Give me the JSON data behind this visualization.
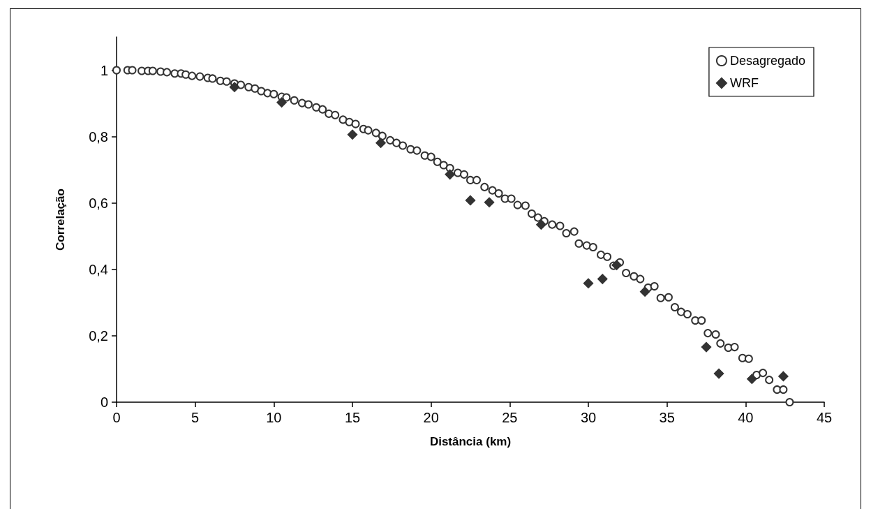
{
  "chart_data": {
    "type": "scatter",
    "xlabel": "Distância (km)",
    "ylabel": "Correlação",
    "xlim": [
      0,
      45
    ],
    "xticks": [
      0,
      5,
      10,
      15,
      20,
      25,
      30,
      35,
      40,
      45
    ],
    "ylim": [
      0,
      1.1
    ],
    "yticks": [
      0,
      {
        "value": 0.2,
        "label": "0,2"
      },
      {
        "value": 0.4,
        "label": "0,4"
      },
      {
        "value": 0.6,
        "label": "0,6"
      },
      {
        "value": 0.8,
        "label": "0,8"
      },
      1
    ],
    "grid": false,
    "legend": "top right",
    "series": [
      {
        "name": "Desagregado",
        "color": "#333333",
        "marker": "circle",
        "x": [
          0,
          0.7,
          1.0,
          1.6,
          2.0,
          2.3,
          2.8,
          3.2,
          3.7,
          4.1,
          4.4,
          4.8,
          5.3,
          5.8,
          6.1,
          6.6,
          7.0,
          7.5,
          7.9,
          8.4,
          8.8,
          9.2,
          9.6,
          10.0,
          10.5,
          10.8,
          11.3,
          11.8,
          12.2,
          12.7,
          13.1,
          13.5,
          13.9,
          14.4,
          14.8,
          15.2,
          15.7,
          16.0,
          16.5,
          16.9,
          17.4,
          17.8,
          18.2,
          18.7,
          19.1,
          19.6,
          20.0,
          20.4,
          20.8,
          21.2,
          21.7,
          22.1,
          22.5,
          22.9,
          23.4,
          23.9,
          24.3,
          24.7,
          25.1,
          25.5,
          26.0,
          26.4,
          26.8,
          27.2,
          27.7,
          28.2,
          28.6,
          29.1,
          29.4,
          29.9,
          30.3,
          30.8,
          31.2,
          31.6,
          32.0,
          32.4,
          32.9,
          33.3,
          33.8,
          34.2,
          34.6,
          35.1,
          35.5,
          35.9,
          36.3,
          36.8,
          37.2,
          37.6,
          38.1,
          38.4,
          38.9,
          39.3,
          39.8,
          40.2,
          40.7,
          41.1,
          41.5,
          42.0,
          42.4,
          42.8
        ],
        "values": [
          1,
          1,
          1,
          0.998,
          0.998,
          0.998,
          0.996,
          0.994,
          0.99,
          0.99,
          0.987,
          0.983,
          0.981,
          0.977,
          0.975,
          0.968,
          0.966,
          0.96,
          0.956,
          0.949,
          0.945,
          0.937,
          0.931,
          0.928,
          0.92,
          0.918,
          0.909,
          0.901,
          0.897,
          0.888,
          0.882,
          0.869,
          0.865,
          0.851,
          0.844,
          0.838,
          0.823,
          0.819,
          0.811,
          0.802,
          0.789,
          0.781,
          0.773,
          0.762,
          0.758,
          0.743,
          0.739,
          0.724,
          0.714,
          0.705,
          0.691,
          0.686,
          0.669,
          0.669,
          0.648,
          0.638,
          0.629,
          0.613,
          0.613,
          0.594,
          0.592,
          0.568,
          0.556,
          0.545,
          0.535,
          0.531,
          0.509,
          0.514,
          0.478,
          0.472,
          0.467,
          0.444,
          0.438,
          0.411,
          0.421,
          0.389,
          0.379,
          0.371,
          0.345,
          0.349,
          0.314,
          0.316,
          0.286,
          0.272,
          0.265,
          0.246,
          0.246,
          0.208,
          0.204,
          0.177,
          0.164,
          0.166,
          0.133,
          0.131,
          0.082,
          0.088,
          0.067,
          0.038,
          0.038,
          0
        ]
      },
      {
        "name": "WRF",
        "color": "#333333",
        "marker": "diamond",
        "x": [
          7.5,
          10.5,
          15.0,
          16.8,
          21.2,
          22.5,
          23.7,
          27.0,
          30.0,
          30.9,
          31.8,
          33.6,
          37.5,
          38.3,
          40.4,
          42.4
        ],
        "values": [
          0.949,
          0.903,
          0.806,
          0.781,
          0.686,
          0.608,
          0.602,
          0.535,
          0.358,
          0.371,
          0.413,
          0.333,
          0.166,
          0.086,
          0.07,
          0.078
        ]
      }
    ]
  }
}
